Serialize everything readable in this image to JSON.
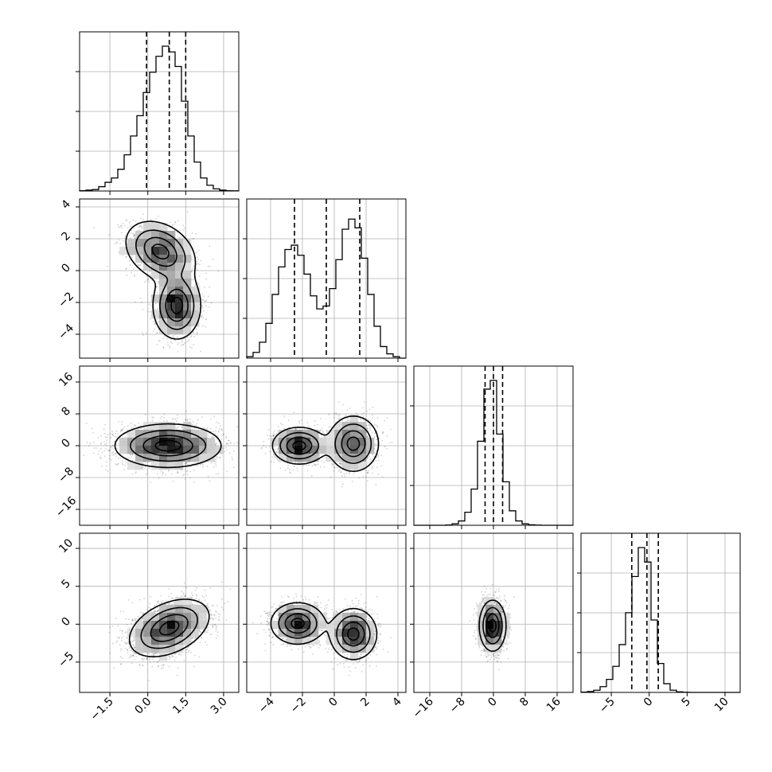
{
  "chart_data": {
    "type": "corner",
    "title": "",
    "grid": true,
    "parameters": [
      {
        "range": [
          -2.7,
          3.6
        ],
        "ticks": [
          -1.5,
          0.0,
          1.5,
          3.0
        ],
        "tick_labels": [
          "−1.5",
          "0.0",
          "1.5",
          "3.0"
        ],
        "quantiles": [
          -0.05,
          0.85,
          1.5
        ],
        "hist_bins": [
          0.002,
          0.006,
          0.01,
          0.03,
          0.06,
          0.09,
          0.15,
          0.25,
          0.38,
          0.52,
          0.68,
          0.82,
          0.93,
          1.0,
          0.96,
          0.86,
          0.62,
          0.38,
          0.2,
          0.09,
          0.04,
          0.015,
          0.006,
          0.002,
          0.001
        ]
      },
      {
        "range": [
          -5.5,
          4.5
        ],
        "ticks": [
          -4,
          -2,
          0,
          2,
          4
        ],
        "tick_labels": [
          "−4",
          "−2",
          "0",
          "2",
          "4"
        ],
        "quantiles": [
          -2.5,
          -0.5,
          1.6
        ],
        "hist_bins": [
          0.01,
          0.04,
          0.11,
          0.24,
          0.44,
          0.63,
          0.75,
          0.78,
          0.71,
          0.58,
          0.43,
          0.34,
          0.36,
          0.48,
          0.68,
          0.89,
          0.96,
          0.9,
          0.69,
          0.44,
          0.22,
          0.08,
          0.03,
          0.01,
          0.0
        ]
      },
      {
        "range": [
          -20,
          20
        ],
        "ticks": [
          -16,
          -8,
          0,
          8,
          16
        ],
        "tick_labels": [
          "−16",
          "−8",
          "0",
          "8",
          "16"
        ],
        "quantiles": [
          -2.1,
          0.0,
          2.3
        ],
        "hist_bins": [
          0.0,
          0.0,
          0.0,
          0.0,
          0.0,
          0.002,
          0.01,
          0.03,
          0.09,
          0.25,
          0.58,
          0.94,
          1.0,
          0.63,
          0.3,
          0.1,
          0.03,
          0.01,
          0.003,
          0.001,
          0.0,
          0.0,
          0.0,
          0.0,
          0.0
        ]
      },
      {
        "range": [
          -9,
          12
        ],
        "ticks": [
          -5,
          0,
          5,
          10
        ],
        "tick_labels": [
          "−5",
          "0",
          "5",
          "10"
        ],
        "quantiles": [
          -2.3,
          -0.3,
          1.2
        ],
        "hist_bins": [
          0.002,
          0.006,
          0.015,
          0.04,
          0.09,
          0.18,
          0.33,
          0.55,
          0.8,
          1.0,
          0.9,
          0.5,
          0.2,
          0.06,
          0.015,
          0.004,
          0.001,
          0.0,
          0.0,
          0.0,
          0.0,
          0.0,
          0.0,
          0.0,
          0.0
        ]
      }
    ],
    "y_ticks": {
      "1": {
        "ticks": [
          -4,
          -2,
          0,
          2,
          4
        ],
        "tick_labels": [
          "−4",
          "−2",
          "0",
          "2",
          "4"
        ]
      },
      "2": {
        "ticks": [
          -16,
          -8,
          0,
          8,
          16
        ],
        "tick_labels": [
          "−16",
          "−8",
          "0",
          "8",
          "16"
        ]
      },
      "3": {
        "ticks": [
          -5,
          0,
          5,
          10
        ],
        "tick_labels": [
          "−5",
          "0",
          "5",
          "10"
        ]
      }
    },
    "pairs": [
      {
        "x_param": 0,
        "y_param": 1,
        "clusters": [
          {
            "cx": 0.5,
            "cy": 1.2,
            "sx": 0.65,
            "sy": 0.9,
            "rho": -0.3,
            "weight": 0.5
          },
          {
            "cx": 1.15,
            "cy": -2.2,
            "sx": 0.45,
            "sy": 1.0,
            "rho": 0.0,
            "weight": 0.5
          }
        ]
      },
      {
        "x_param": 0,
        "y_param": 2,
        "clusters": [
          {
            "cx": 0.8,
            "cy": 0.0,
            "sx": 1.0,
            "sy": 2.6,
            "rho": 0.0,
            "weight": 1.0
          }
        ]
      },
      {
        "x_param": 1,
        "y_param": 2,
        "clusters": [
          {
            "cx": -2.2,
            "cy": 0.0,
            "sx": 0.8,
            "sy": 2.2,
            "rho": 0.0,
            "weight": 0.5
          },
          {
            "cx": 1.2,
            "cy": 0.5,
            "sx": 0.75,
            "sy": 3.3,
            "rho": 0.0,
            "weight": 0.5
          }
        ]
      },
      {
        "x_param": 0,
        "y_param": 3,
        "clusters": [
          {
            "cx": 0.85,
            "cy": -0.5,
            "sx": 0.75,
            "sy": 1.8,
            "rho": 0.4,
            "weight": 1.0
          }
        ]
      },
      {
        "x_param": 1,
        "y_param": 3,
        "clusters": [
          {
            "cx": -2.3,
            "cy": 0.1,
            "sx": 0.8,
            "sy": 1.3,
            "rho": 0.0,
            "weight": 0.5
          },
          {
            "cx": 1.2,
            "cy": -1.3,
            "sx": 0.7,
            "sy": 1.6,
            "rho": 0.0,
            "weight": 0.5
          }
        ]
      },
      {
        "x_param": 2,
        "y_param": 3,
        "clusters": [
          {
            "cx": -0.2,
            "cy": -0.2,
            "sx": 1.6,
            "sy": 1.6,
            "rho": 0.0,
            "weight": 1.0
          }
        ]
      }
    ]
  }
}
